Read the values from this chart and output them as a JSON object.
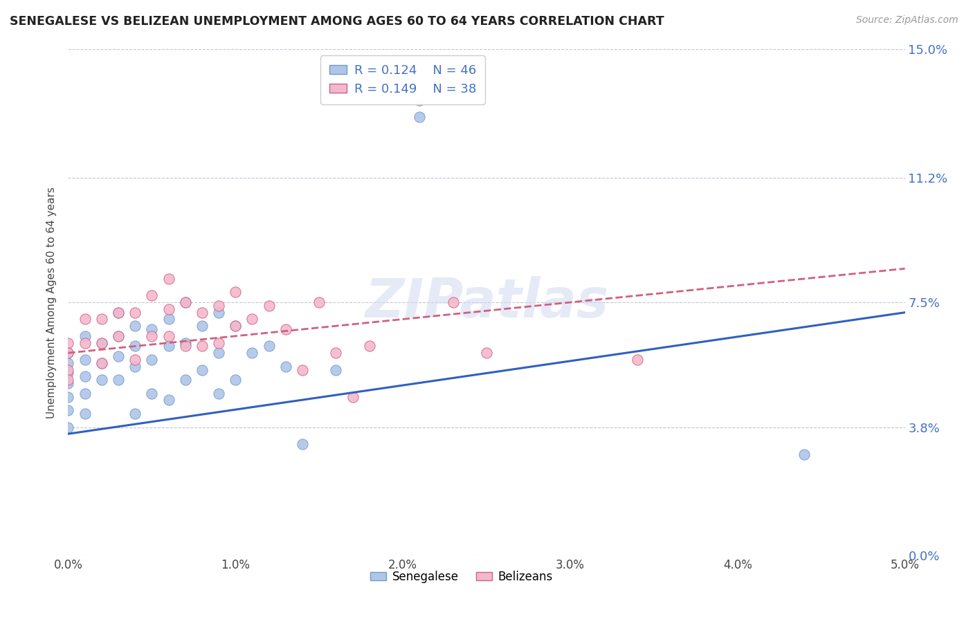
{
  "title": "SENEGALESE VS BELIZEAN UNEMPLOYMENT AMONG AGES 60 TO 64 YEARS CORRELATION CHART",
  "source": "Source: ZipAtlas.com",
  "ylabel": "Unemployment Among Ages 60 to 64 years",
  "xlim": [
    0.0,
    0.05
  ],
  "ylim": [
    0.0,
    0.15
  ],
  "xticks": [
    0.0,
    0.01,
    0.02,
    0.03,
    0.04,
    0.05
  ],
  "xtick_labels": [
    "0.0%",
    "1.0%",
    "2.0%",
    "3.0%",
    "4.0%",
    "5.0%"
  ],
  "ytick_positions": [
    0.0,
    0.038,
    0.075,
    0.112,
    0.15
  ],
  "ytick_labels": [
    "0.0%",
    "3.8%",
    "7.5%",
    "11.2%",
    "15.0%"
  ],
  "ytick_color": "#4472c4",
  "grid_color": "#b0b8c8",
  "background_color": "#ffffff",
  "senegalese_color": "#aec6e8",
  "senegalese_edge": "#7399cc",
  "belizean_color": "#f4b8cc",
  "belizean_edge": "#d06080",
  "trend_senegalese_color": "#3060c0",
  "trend_belizean_color": "#d06080",
  "legend_R_senegalese": "0.124",
  "legend_N_senegalese": "46",
  "legend_R_belizean": "0.149",
  "legend_N_belizean": "38",
  "watermark": "ZIPatlas",
  "senegalese_x": [
    0.0,
    0.0,
    0.0,
    0.0,
    0.0,
    0.0,
    0.0,
    0.001,
    0.001,
    0.001,
    0.001,
    0.001,
    0.002,
    0.002,
    0.002,
    0.003,
    0.003,
    0.003,
    0.003,
    0.004,
    0.004,
    0.004,
    0.004,
    0.005,
    0.005,
    0.005,
    0.006,
    0.006,
    0.006,
    0.007,
    0.007,
    0.007,
    0.008,
    0.008,
    0.009,
    0.009,
    0.009,
    0.01,
    0.01,
    0.011,
    0.012,
    0.013,
    0.014,
    0.016,
    0.044,
    0.021
  ],
  "senegalese_y": [
    0.06,
    0.057,
    0.054,
    0.051,
    0.047,
    0.043,
    0.038,
    0.065,
    0.058,
    0.053,
    0.048,
    0.042,
    0.063,
    0.057,
    0.052,
    0.072,
    0.065,
    0.059,
    0.052,
    0.068,
    0.062,
    0.056,
    0.042,
    0.067,
    0.058,
    0.048,
    0.07,
    0.062,
    0.046,
    0.075,
    0.063,
    0.052,
    0.068,
    0.055,
    0.072,
    0.06,
    0.048,
    0.068,
    0.052,
    0.06,
    0.062,
    0.056,
    0.033,
    0.055,
    0.03,
    0.13
  ],
  "belizean_x": [
    0.0,
    0.0,
    0.0,
    0.0,
    0.001,
    0.001,
    0.002,
    0.002,
    0.002,
    0.003,
    0.003,
    0.004,
    0.004,
    0.005,
    0.005,
    0.006,
    0.006,
    0.006,
    0.007,
    0.007,
    0.008,
    0.008,
    0.009,
    0.009,
    0.01,
    0.01,
    0.011,
    0.012,
    0.013,
    0.014,
    0.015,
    0.016,
    0.017,
    0.018,
    0.021,
    0.023,
    0.025,
    0.034
  ],
  "belizean_y": [
    0.063,
    0.06,
    0.055,
    0.052,
    0.07,
    0.063,
    0.07,
    0.063,
    0.057,
    0.072,
    0.065,
    0.072,
    0.058,
    0.077,
    0.065,
    0.082,
    0.073,
    0.065,
    0.075,
    0.062,
    0.072,
    0.062,
    0.074,
    0.063,
    0.078,
    0.068,
    0.07,
    0.074,
    0.067,
    0.055,
    0.075,
    0.06,
    0.047,
    0.062,
    0.135,
    0.075,
    0.06,
    0.058
  ],
  "trend_s_x0": 0.0,
  "trend_s_y0": 0.036,
  "trend_s_x1": 0.05,
  "trend_s_y1": 0.072,
  "trend_b_x0": 0.0,
  "trend_b_y0": 0.06,
  "trend_b_x1": 0.05,
  "trend_b_y1": 0.085
}
